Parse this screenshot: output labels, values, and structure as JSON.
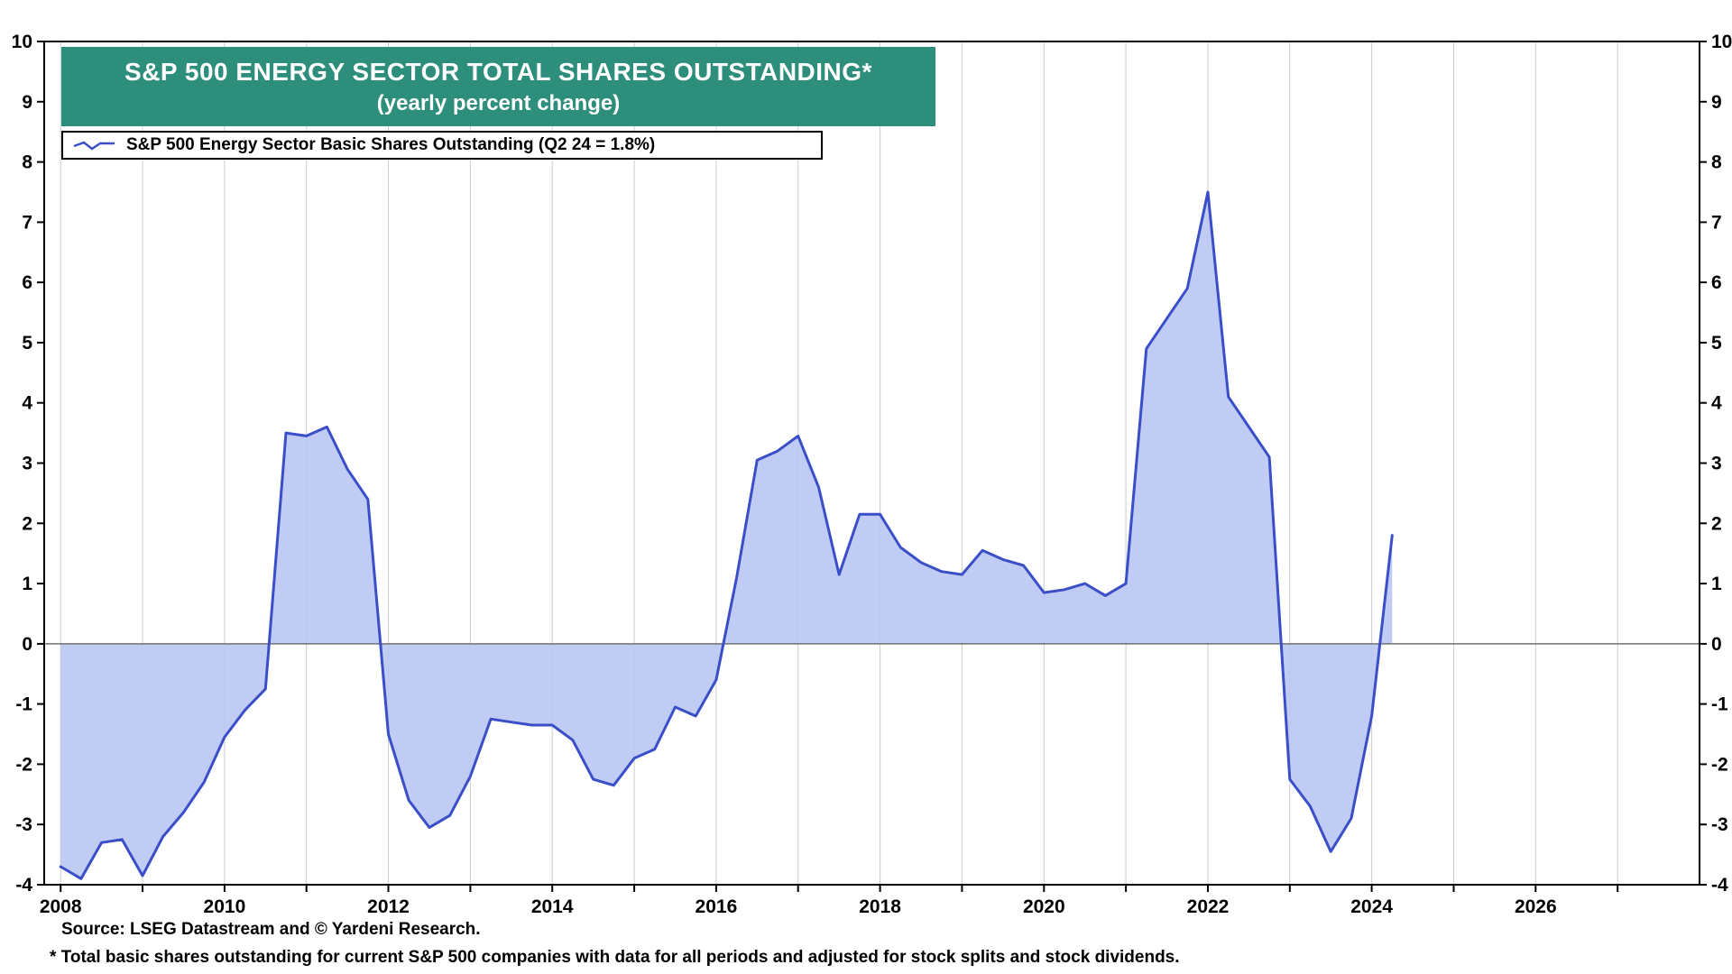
{
  "texts": {
    "title_line1": "S&P 500 ENERGY SECTOR TOTAL SHARES OUTSTANDING*",
    "title_line2": "(yearly percent change)",
    "legend_label": "S&P 500 Energy Sector Basic Shares Outstanding (Q2 24 = 1.8%)",
    "source_note": "Source: LSEG Datastream and © Yardeni Research.",
    "footnote": "* Total basic shares outstanding for current S&P 500 companies with data for all periods and adjusted for stock splits and stock dividends."
  },
  "colors": {
    "title_bg": "#2E8E7C",
    "title_text": "#FFFFFF",
    "line": "#3A4EC8",
    "fill": "#B9C7F2",
    "grid": "#CCCCCC",
    "zero_line": "#707070",
    "axis": "#000000",
    "text": "#000000"
  },
  "chart_data": {
    "type": "area",
    "title": "S&P 500 Energy Sector Total Shares Outstanding",
    "subtitle": "(yearly percent change)",
    "xlabel": "",
    "ylabel": "",
    "ylim": [
      -4,
      10
    ],
    "xlim": [
      2007.8,
      2028.0
    ],
    "y_ticks": [
      -4,
      -3,
      -2,
      -1,
      0,
      1,
      2,
      3,
      4,
      5,
      6,
      7,
      8,
      9,
      10
    ],
    "x_grid_years": [
      2008,
      2009,
      2010,
      2011,
      2012,
      2013,
      2014,
      2015,
      2016,
      2017,
      2018,
      2019,
      2020,
      2021,
      2022,
      2023,
      2024,
      2025,
      2026,
      2027
    ],
    "x_tick_labels": [
      2008,
      2010,
      2012,
      2014,
      2016,
      2018,
      2020,
      2022,
      2024,
      2026
    ],
    "baseline": 0,
    "grid": "vertical",
    "legend_position": "top-left",
    "series": [
      {
        "name": "S&P 500 Energy Sector Basic Shares Outstanding",
        "frequency": "quarterly",
        "x_start": 2008.0,
        "x_step": 0.25,
        "last_point": "Q2 2024 = 1.8%",
        "values": [
          -3.7,
          -3.9,
          -3.3,
          -3.25,
          -3.85,
          -3.2,
          -2.8,
          -2.3,
          -1.55,
          -1.1,
          -0.75,
          3.5,
          3.45,
          3.6,
          2.9,
          2.4,
          -1.5,
          -2.6,
          -3.05,
          -2.85,
          -2.2,
          -1.25,
          -1.3,
          -1.35,
          -1.35,
          -1.6,
          -2.25,
          -2.35,
          -1.9,
          -1.75,
          -1.05,
          -1.2,
          -0.6,
          1.1,
          3.05,
          3.2,
          3.45,
          2.6,
          1.15,
          2.15,
          2.15,
          1.6,
          1.35,
          1.2,
          1.15,
          1.55,
          1.4,
          1.3,
          0.85,
          0.9,
          1.0,
          0.8,
          1.0,
          4.9,
          5.4,
          5.9,
          7.5,
          4.1,
          3.6,
          3.1,
          -2.25,
          -2.7,
          -3.45,
          -2.9,
          -1.2,
          1.8
        ]
      }
    ]
  }
}
